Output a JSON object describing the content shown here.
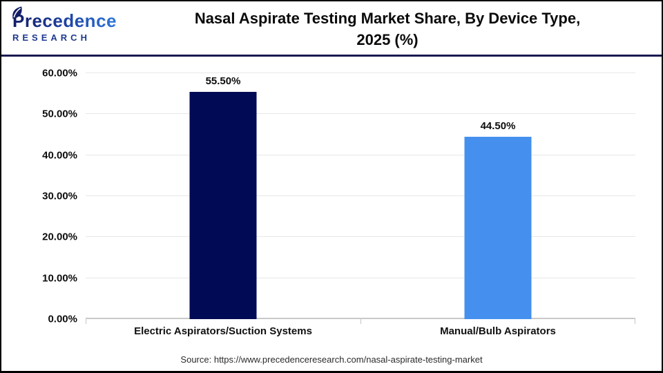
{
  "header": {
    "logo": {
      "name": "Precedence",
      "subtitle": "RESEARCH"
    },
    "title_line1": "Nasal Aspirate Testing Market Share, By Device Type,",
    "title_line2": "2025 (%)"
  },
  "chart_data": {
    "type": "bar",
    "title": "Nasal Aspirate Testing Market Share, By Device Type, 2025 (%)",
    "categories": [
      "Electric Aspirators/Suction Systems",
      "Manual/Bulb Aspirators"
    ],
    "values": [
      55.5,
      44.5
    ],
    "value_labels": [
      "55.50%",
      "44.50%"
    ],
    "bar_colors": [
      "#010b55",
      "#4590ee"
    ],
    "xlabel": "",
    "ylabel": "",
    "ylim": [
      0,
      60
    ],
    "ytick_labels": [
      "0.00%",
      "10.00%",
      "20.00%",
      "30.00%",
      "40.00%",
      "50.00%",
      "60.00%"
    ],
    "grid": true,
    "legend_position": "none"
  },
  "footer": {
    "source": "Source: https://www.precedenceresearch.com/nasal-aspirate-testing-market"
  },
  "colors": {
    "bar_navy": "#010b55",
    "bar_blue": "#4590ee",
    "header_divider": "#191950",
    "gridline": "#e7e7e7"
  }
}
